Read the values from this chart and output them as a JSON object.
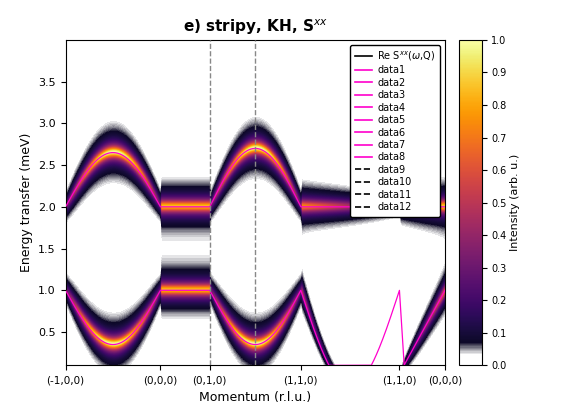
{
  "title": "e) stripy, KH, S$^{xx}$",
  "xlabel": "Momentum (r.l.u.)",
  "ylabel": "Energy transfer (meV)",
  "ylim": [
    0.1,
    4.0
  ],
  "yticks": [
    0.5,
    1.0,
    1.5,
    2.0,
    2.5,
    3.0,
    3.5
  ],
  "xtick_positions": [
    0,
    25,
    38,
    62,
    88,
    100
  ],
  "xtick_labels": [
    "(-1,0,0)",
    "(0,0,0)",
    "(0,1,0)",
    "(1,1,0)",
    "(1,1,0)",
    "(0,0,0)"
  ],
  "vline_positions": [
    38,
    50
  ],
  "colormap": "inferno",
  "cbar_label": "Intensity (arb. u.)",
  "cbar_ticks": [
    0,
    0.1,
    0.2,
    0.3,
    0.4,
    0.5,
    0.6,
    0.7,
    0.8,
    0.9,
    1.0
  ],
  "legend_entries": [
    {
      "label": "Re S$^{xx}$($\\omega$,Q)",
      "color": "black",
      "linestyle": "solid"
    },
    {
      "label": "data1",
      "color": "#ff00cc",
      "linestyle": "solid"
    },
    {
      "label": "data2",
      "color": "#ff00cc",
      "linestyle": "solid"
    },
    {
      "label": "data3",
      "color": "#ff00cc",
      "linestyle": "solid"
    },
    {
      "label": "data4",
      "color": "#ff00cc",
      "linestyle": "solid"
    },
    {
      "label": "data5",
      "color": "#ff00cc",
      "linestyle": "solid"
    },
    {
      "label": "data6",
      "color": "#ff00cc",
      "linestyle": "solid"
    },
    {
      "label": "data7",
      "color": "#ff00cc",
      "linestyle": "solid"
    },
    {
      "label": "data8",
      "color": "#ff00cc",
      "linestyle": "solid"
    },
    {
      "label": "data9",
      "color": "black",
      "linestyle": "dashed"
    },
    {
      "label": "data10",
      "color": "black",
      "linestyle": "dashed"
    },
    {
      "label": "data11",
      "color": "black",
      "linestyle": "dashed"
    },
    {
      "label": "data12",
      "color": "black",
      "linestyle": "dashed"
    }
  ]
}
